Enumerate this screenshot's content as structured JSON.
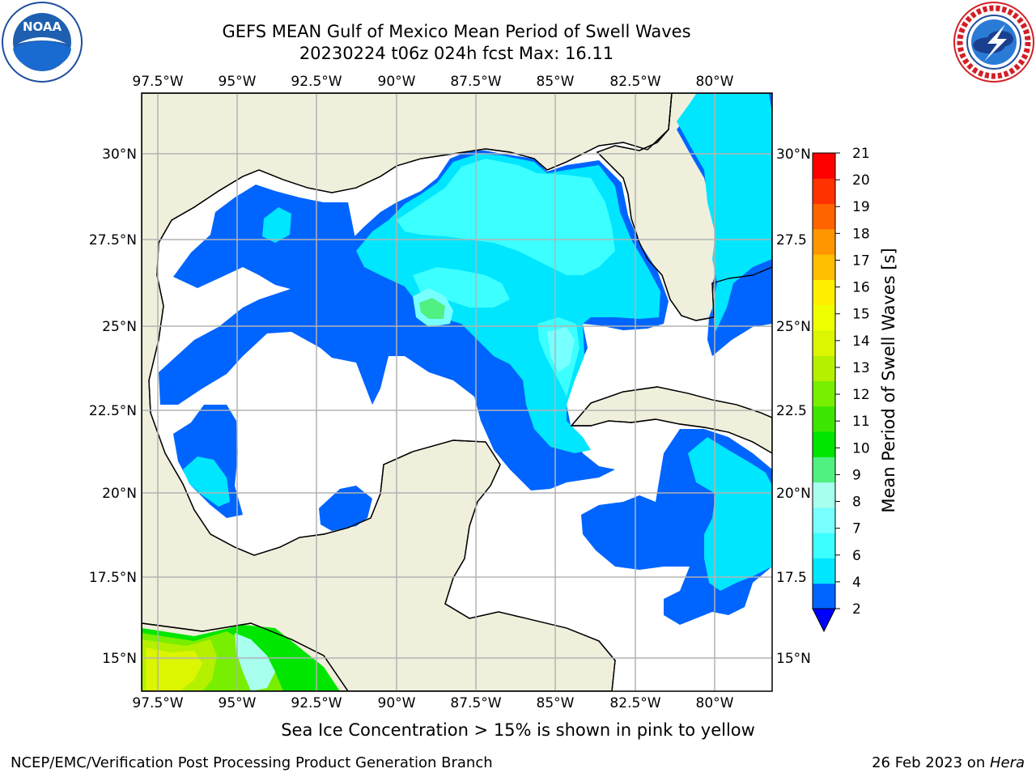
{
  "header": {
    "title_line1": "GEFS MEAN Gulf of Mexico Mean Period of Swell Waves",
    "title_line2": "20230224 t06z 024h fcst   Max: 16.11"
  },
  "logos": {
    "noaa_text": "NOAA",
    "noaa_ring_text": "NATIONAL OCEANIC AND ATMOSPHERIC ADMINISTRATION · U.S. DEPARTMENT OF COMMERCE",
    "nws_ring_text": "NATIONAL WEATHER SERVICE"
  },
  "map": {
    "lon_labels": [
      "97.5°W",
      "95°W",
      "92.5°W",
      "90°W",
      "87.5°W",
      "85°W",
      "82.5°W",
      "80°W"
    ],
    "lat_labels_left": [
      "30°N",
      "27.5°N",
      "25°N",
      "22.5°N",
      "20°N",
      "17.5°N",
      "15°N"
    ],
    "lat_labels_right": [
      "30°N",
      "27.5",
      "25°N",
      "22.5",
      "20°N",
      "17.5",
      "15°N"
    ],
    "colors": {
      "land": "#efefdc",
      "coast": "#000000",
      "grid": "#b3b3b3",
      "ocean_none": "#ffffff"
    }
  },
  "colorbar": {
    "label": "Mean Period of Swell Waves [s]",
    "ticks": [
      "2",
      "4",
      "6",
      "7",
      "8",
      "9",
      "10",
      "11",
      "12",
      "13",
      "14",
      "15",
      "16",
      "17",
      "18",
      "19",
      "20",
      "21"
    ],
    "colors": [
      "#0064ff",
      "#00e6ff",
      "#3cffff",
      "#78ffff",
      "#a8ffee",
      "#50f081",
      "#00e600",
      "#3ce600",
      "#78ee00",
      "#b4f000",
      "#dcf500",
      "#f0ff00",
      "#ffee00",
      "#ffbe00",
      "#ff9600",
      "#ff6400",
      "#ff3200",
      "#ff0000"
    ],
    "extend_color": "#0000ff"
  },
  "subtitle": "Sea Ice Concentration > 15% is shown in pink to yellow",
  "footer": {
    "left": "NCEP/EMC/Verification Post Processing Product Generation Branch",
    "right_prefix": "26 Feb 2023 on ",
    "right_host": "Hera"
  }
}
